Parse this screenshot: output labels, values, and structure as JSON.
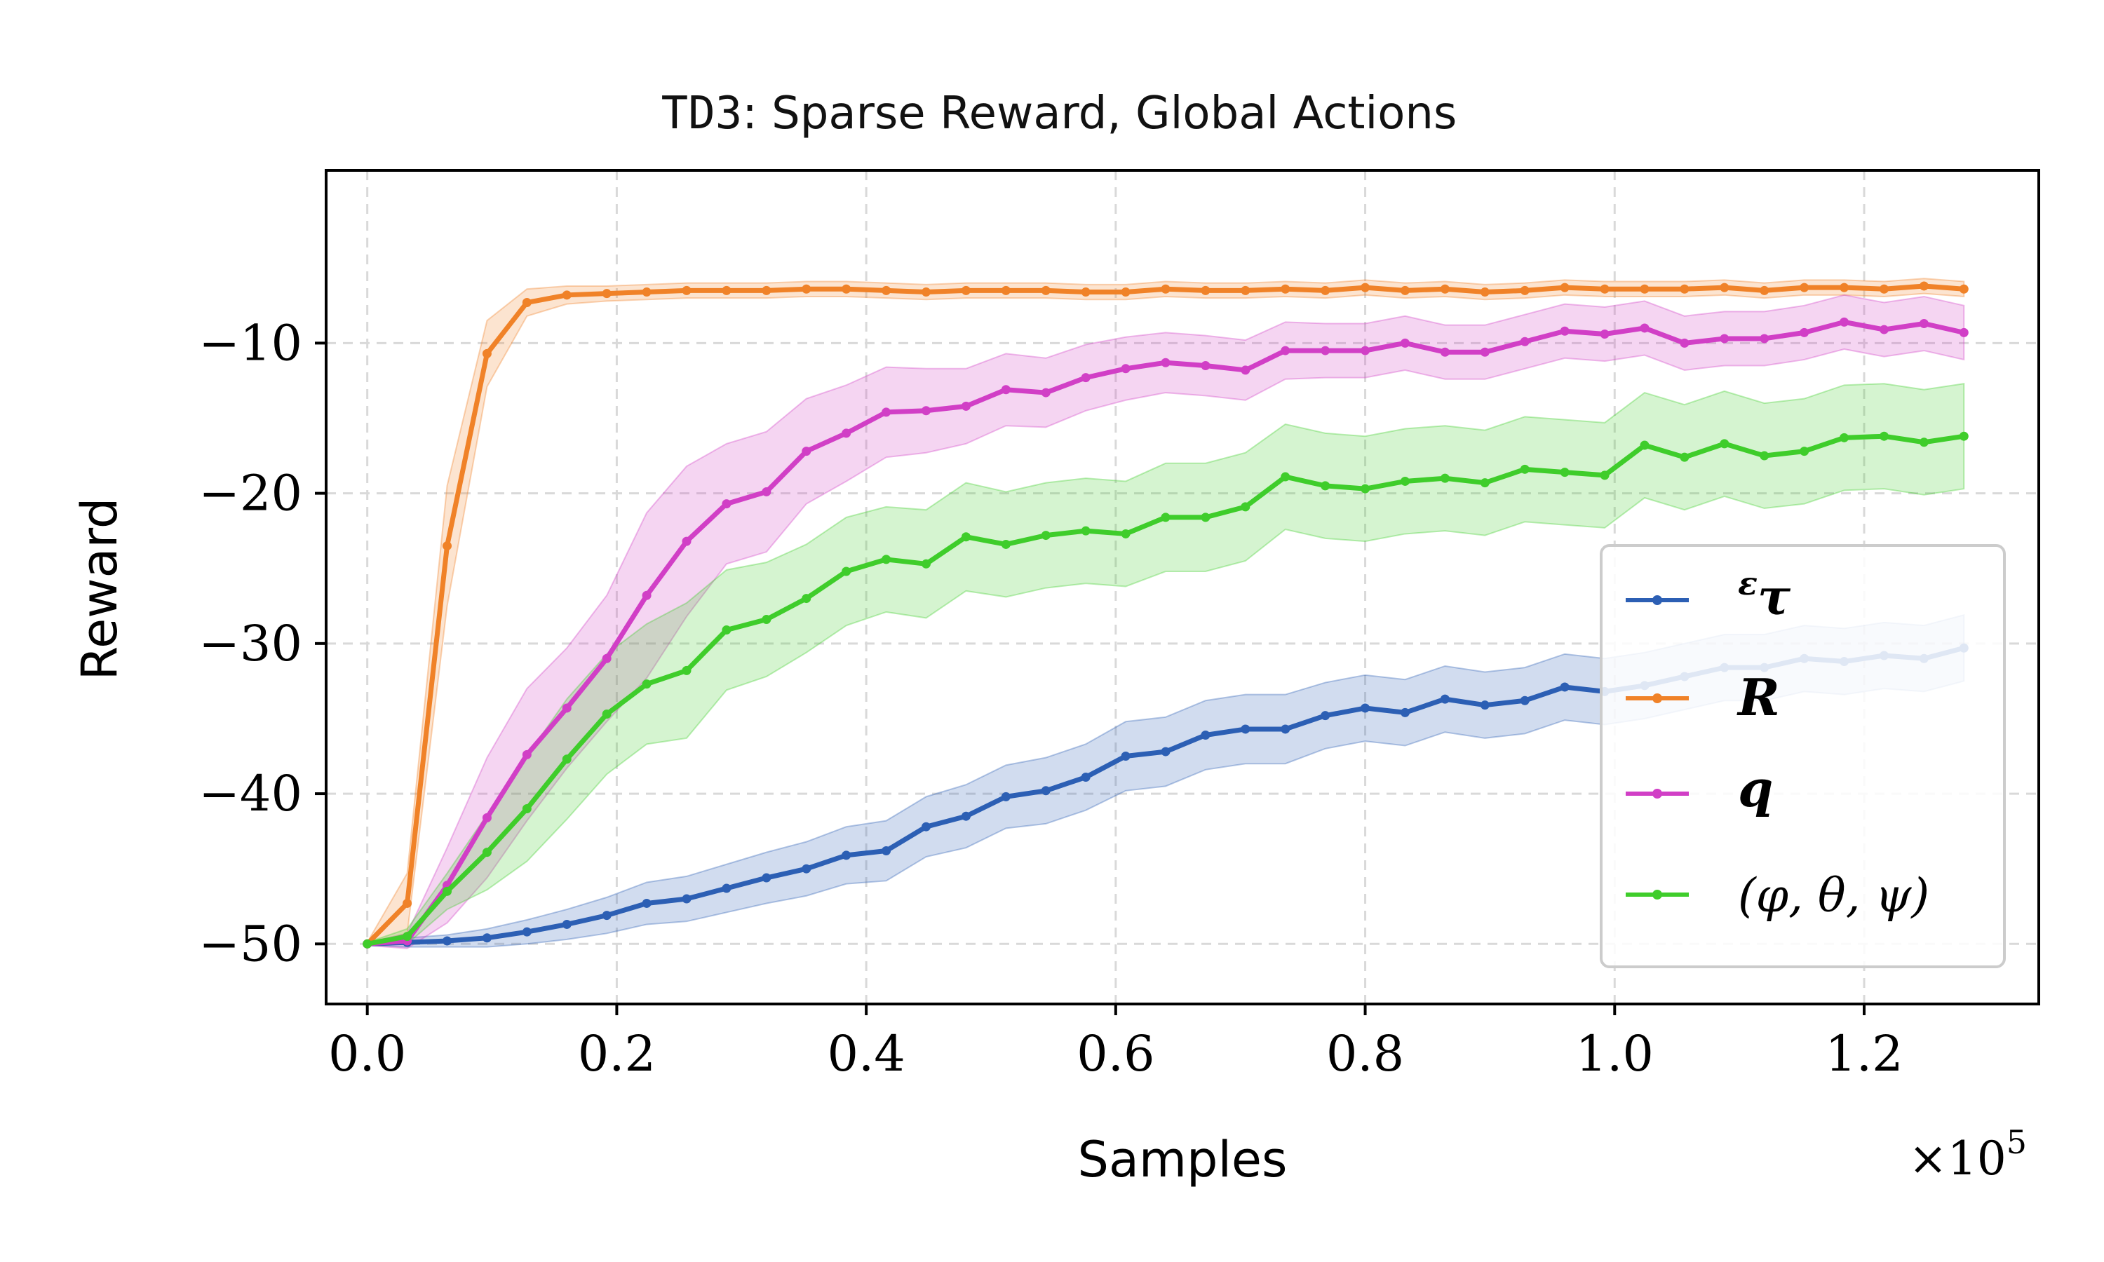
{
  "chart_data": {
    "type": "line",
    "title_prefix": "TD3",
    "title_rest": ": Sparse Reward, Global Actions",
    "xlabel": "Samples",
    "ylabel": "Reward",
    "x_multiplier_label": "×10",
    "x_multiplier_exp": "5",
    "xlim": [
      -0.033,
      1.34
    ],
    "ylim": [
      -54,
      1.5
    ],
    "xticks": [
      0.0,
      0.2,
      0.4,
      0.6,
      0.8,
      1.0,
      1.2
    ],
    "xtick_labels": [
      "0.0",
      "0.2",
      "0.4",
      "0.6",
      "0.8",
      "1.0",
      "1.2"
    ],
    "yticks": [
      -50,
      -40,
      -30,
      -20,
      -10
    ],
    "ytick_labels": [
      "−50",
      "−40",
      "−30",
      "−20",
      "−10"
    ],
    "grid": true,
    "legend_position": "lower-right",
    "x": [
      0.0,
      0.032,
      0.064,
      0.096,
      0.128,
      0.16,
      0.192,
      0.224,
      0.256,
      0.288,
      0.32,
      0.352,
      0.384,
      0.416,
      0.448,
      0.48,
      0.512,
      0.544,
      0.576,
      0.608,
      0.64,
      0.672,
      0.704,
      0.736,
      0.768,
      0.8,
      0.832,
      0.864,
      0.896,
      0.928,
      0.96,
      0.992,
      1.024,
      1.056,
      1.088,
      1.12,
      1.152,
      1.184,
      1.216,
      1.248,
      1.28
    ],
    "series": [
      {
        "name": "epsilon-tau",
        "legend_sup": "ε",
        "legend_main": "τ",
        "color": "#2c5fb4",
        "values": [
          -50,
          -49.9,
          -49.8,
          -49.6,
          -49.2,
          -48.7,
          -48.1,
          -47.3,
          -47.0,
          -46.3,
          -45.6,
          -45.0,
          -44.1,
          -43.8,
          -42.2,
          -41.5,
          -40.2,
          -39.8,
          -38.9,
          -37.5,
          -37.2,
          -36.1,
          -35.7,
          -35.7,
          -34.8,
          -34.3,
          -34.6,
          -33.7,
          -34.1,
          -33.8,
          -32.9,
          -33.2,
          -32.8,
          -32.2,
          -31.6,
          -31.6,
          -31.0,
          -31.2,
          -30.8,
          -31.0,
          -30.3
        ],
        "band": [
          0.1,
          0.3,
          0.4,
          0.6,
          0.8,
          1.0,
          1.2,
          1.4,
          1.5,
          1.6,
          1.7,
          1.8,
          1.9,
          2.0,
          2.0,
          2.1,
          2.1,
          2.2,
          2.2,
          2.3,
          2.3,
          2.3,
          2.3,
          2.3,
          2.2,
          2.2,
          2.2,
          2.2,
          2.2,
          2.2,
          2.2,
          2.2,
          2.2,
          2.2,
          2.2,
          2.2,
          2.2,
          2.2,
          2.2,
          2.2,
          2.2
        ]
      },
      {
        "name": "R",
        "legend_main": "R",
        "color": "#f08228",
        "values": [
          -50,
          -47.3,
          -23.5,
          -10.7,
          -7.3,
          -6.8,
          -6.7,
          -6.6,
          -6.5,
          -6.5,
          -6.5,
          -6.4,
          -6.4,
          -6.5,
          -6.6,
          -6.5,
          -6.5,
          -6.5,
          -6.6,
          -6.6,
          -6.4,
          -6.5,
          -6.5,
          -6.4,
          -6.5,
          -6.3,
          -6.5,
          -6.4,
          -6.6,
          -6.5,
          -6.3,
          -6.4,
          -6.4,
          -6.4,
          -6.3,
          -6.5,
          -6.3,
          -6.3,
          -6.4,
          -6.2,
          -6.4
        ],
        "band": [
          0.1,
          2.0,
          4.0,
          2.2,
          0.9,
          0.6,
          0.5,
          0.5,
          0.5,
          0.5,
          0.5,
          0.5,
          0.5,
          0.5,
          0.5,
          0.5,
          0.5,
          0.5,
          0.5,
          0.5,
          0.5,
          0.5,
          0.5,
          0.5,
          0.5,
          0.5,
          0.5,
          0.5,
          0.5,
          0.5,
          0.5,
          0.5,
          0.5,
          0.5,
          0.5,
          0.5,
          0.5,
          0.5,
          0.5,
          0.5,
          0.5
        ]
      },
      {
        "name": "q",
        "legend_main": "q",
        "color": "#d13fc6",
        "values": [
          -50,
          -49.8,
          -46.1,
          -41.6,
          -37.4,
          -34.3,
          -31.0,
          -26.8,
          -23.2,
          -20.7,
          -19.9,
          -17.2,
          -16.0,
          -14.6,
          -14.5,
          -14.2,
          -13.1,
          -13.3,
          -12.3,
          -11.7,
          -11.3,
          -11.5,
          -11.8,
          -10.5,
          -10.5,
          -10.5,
          -10.0,
          -10.6,
          -10.6,
          -9.9,
          -9.2,
          -9.4,
          -9.0,
          -10.0,
          -9.7,
          -9.7,
          -9.3,
          -8.6,
          -9.1,
          -8.7,
          -9.3
        ],
        "band": [
          0.1,
          0.5,
          2.5,
          4.0,
          4.4,
          4.0,
          4.2,
          5.5,
          5.0,
          4.0,
          4.0,
          3.5,
          3.2,
          3.0,
          2.8,
          2.5,
          2.4,
          2.3,
          2.2,
          2.1,
          2.0,
          2.0,
          2.0,
          1.9,
          1.8,
          1.8,
          1.8,
          1.8,
          1.8,
          1.8,
          1.8,
          1.8,
          1.8,
          1.8,
          1.8,
          1.8,
          1.8,
          1.8,
          1.8,
          1.8,
          1.8
        ]
      },
      {
        "name": "phi-theta-psi",
        "legend_main": "(φ, θ, ψ)",
        "color": "#3fcd2b",
        "values": [
          -50,
          -49.5,
          -46.5,
          -43.9,
          -41.0,
          -37.7,
          -34.7,
          -32.7,
          -31.8,
          -29.1,
          -28.4,
          -27.0,
          -25.2,
          -24.4,
          -24.7,
          -22.9,
          -23.4,
          -22.8,
          -22.5,
          -22.7,
          -21.6,
          -21.6,
          -20.9,
          -18.9,
          -19.5,
          -19.7,
          -19.2,
          -19.0,
          -19.3,
          -18.4,
          -18.6,
          -18.8,
          -16.8,
          -17.6,
          -16.7,
          -17.5,
          -17.2,
          -16.3,
          -16.2,
          -16.6,
          -16.2
        ],
        "band": [
          0.1,
          0.5,
          1.2,
          2.5,
          3.5,
          4.0,
          4.0,
          4.0,
          4.5,
          4.0,
          3.8,
          3.6,
          3.6,
          3.5,
          3.6,
          3.6,
          3.5,
          3.5,
          3.5,
          3.5,
          3.6,
          3.6,
          3.6,
          3.5,
          3.5,
          3.5,
          3.5,
          3.5,
          3.5,
          3.5,
          3.5,
          3.5,
          3.5,
          3.5,
          3.5,
          3.5,
          3.5,
          3.5,
          3.5,
          3.5,
          3.5
        ]
      }
    ]
  }
}
